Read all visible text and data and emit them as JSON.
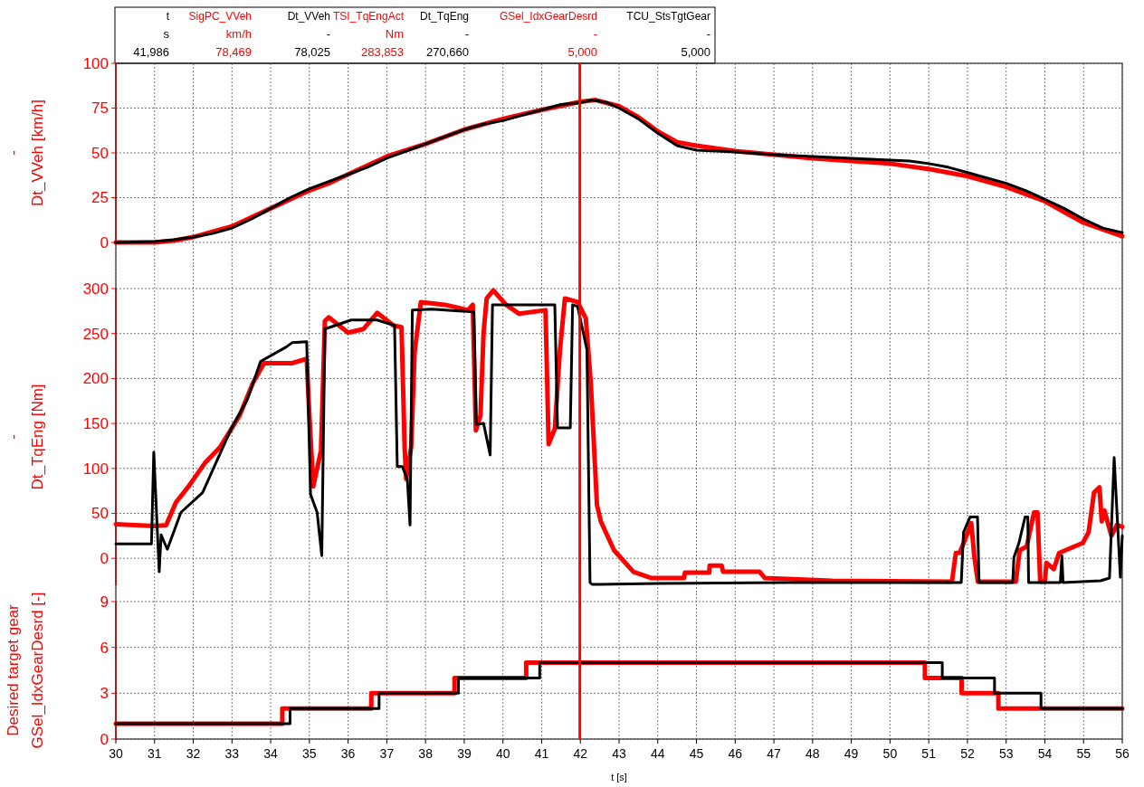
{
  "chart_data": [
    {
      "type": "line",
      "ylabel": "-\nDt_VVeh [km/h]",
      "xlim": [
        30,
        56
      ],
      "xticks": [
        30,
        31,
        32,
        33,
        34,
        35,
        36,
        37,
        38,
        39,
        40,
        41,
        42,
        43,
        44,
        45,
        46,
        47,
        48,
        49,
        50,
        51,
        52,
        53,
        54,
        55,
        56
      ],
      "ylim": [
        0,
        100
      ],
      "yticks": [
        0,
        25,
        50,
        75,
        100
      ],
      "grid": true,
      "legend": "top",
      "tick_labels": "y",
      "annotations": [
        "t",
        "s",
        "41,986",
        "km/h",
        "78,469",
        "-",
        "78,025"
      ],
      "ref_lines": [
        {
          "axis": "x",
          "value": 41.986,
          "color": "#ff0000"
        }
      ],
      "series": [
        {
          "name": "SigPC_VVeh",
          "color": "#ff0000",
          "x": [
            30,
            31,
            31.5,
            32,
            33,
            34,
            35,
            35.5,
            36,
            37,
            38,
            39,
            40,
            41,
            42,
            42.4,
            43,
            43.5,
            44,
            44.5,
            45,
            46,
            47,
            48,
            49,
            50,
            51,
            52,
            53,
            54,
            55,
            56
          ],
          "values": [
            0,
            0,
            1,
            3,
            9,
            19,
            29,
            33,
            38,
            48,
            55,
            63,
            69,
            74,
            78.5,
            79.5,
            76,
            70,
            62,
            56,
            54,
            51,
            49,
            47,
            45.5,
            44,
            41,
            37,
            31,
            23,
            11,
            3.5
          ]
        },
        {
          "name": "Dt_VVeh",
          "color": "#000000",
          "x": [
            30,
            31,
            31.5,
            32,
            32.5,
            33,
            33.5,
            34,
            34.5,
            35,
            35.5,
            36,
            36.5,
            37,
            37.5,
            38,
            38.5,
            39,
            39.5,
            40,
            40.5,
            41,
            41.5,
            42,
            42.3,
            42.7,
            43,
            43.5,
            44,
            44.5,
            45,
            46,
            47,
            48,
            49,
            50,
            50.5,
            51,
            51.5,
            52,
            52.5,
            53,
            53.5,
            54,
            54.5,
            55,
            55.5,
            56
          ],
          "values": [
            0,
            0.5,
            1.5,
            3,
            5,
            8,
            13,
            19,
            25,
            30,
            34,
            38,
            42,
            47,
            51,
            55,
            59,
            63,
            66,
            68,
            71,
            74,
            77,
            78,
            79.5,
            78,
            75,
            69,
            61,
            54,
            51.5,
            50.5,
            49,
            48,
            47,
            46,
            45.5,
            44,
            42,
            39,
            36,
            33,
            29,
            24,
            19,
            13,
            8,
            5.5
          ]
        }
      ]
    },
    {
      "type": "line",
      "ylabel": "-\nDt_TqEng [Nm]",
      "xlim": [
        30,
        56
      ],
      "xticks": [
        30,
        31,
        32,
        33,
        34,
        35,
        36,
        37,
        38,
        39,
        40,
        41,
        42,
        43,
        44,
        45,
        46,
        47,
        48,
        49,
        50,
        51,
        52,
        53,
        54,
        55,
        56
      ],
      "ylim": [
        -30,
        300
      ],
      "yticks": [
        0,
        50,
        100,
        150,
        200,
        250,
        300
      ],
      "grid": true,
      "legend": "top",
      "tick_labels": "y",
      "annotations": [
        "Nm",
        "283,853",
        "-",
        "270,660"
      ],
      "ref_lines": [
        {
          "axis": "x",
          "value": 41.986,
          "color": "#ff0000"
        }
      ],
      "series": [
        {
          "name": "TSI_TqEngAct",
          "color": "#ff0000",
          "x": [
            30,
            31,
            31.3,
            31.55,
            31.88,
            32.3,
            32.7,
            33.2,
            33.54,
            33.83,
            34.55,
            34.93,
            35.0,
            35.1,
            35.3,
            35.4,
            35.5,
            36.0,
            36.4,
            36.75,
            37.17,
            37.38,
            37.46,
            37.5,
            37.63,
            37.72,
            37.88,
            38.5,
            39.1,
            39.22,
            39.3,
            39.42,
            39.5,
            39.58,
            39.75,
            40.08,
            40.42,
            41.1,
            41.18,
            41.34,
            41.47,
            41.6,
            41.93,
            42.14,
            42.27,
            42.43,
            42.53,
            42.87,
            43.37,
            43.84,
            44.68,
            44.7,
            45.33,
            45.34,
            45.65,
            45.69,
            46.63,
            46.77,
            48.5,
            51.6,
            51.7,
            51.8,
            52.1,
            52.18,
            52.27,
            53.25,
            53.35,
            53.53,
            53.72,
            53.81,
            53.88,
            54.0,
            54.04,
            54.23,
            54.37,
            54.7,
            54.98,
            55.13,
            55.27,
            55.41,
            55.47,
            55.54,
            55.72,
            55.86,
            56
          ],
          "values": [
            38,
            36,
            37,
            62,
            80,
            106,
            124,
            159,
            195,
            217,
            217,
            222,
            159,
            80,
            120,
            264,
            268,
            251,
            255,
            273,
            259,
            257,
            124,
            88,
            124,
            230,
            285,
            282,
            276,
            282,
            142,
            159,
            251,
            289,
            298,
            282,
            272,
            276,
            127,
            144,
            230,
            289,
            285,
            267,
            195,
            59,
            41,
            9,
            -15,
            -22,
            -22,
            -16,
            -16,
            -8,
            -8,
            -15,
            -15,
            -22,
            -25,
            -26,
            6,
            6,
            39,
            1,
            -26,
            -26,
            9,
            13,
            51,
            51,
            -26,
            -26,
            -5,
            -12,
            6,
            12,
            17,
            29,
            73,
            79,
            41,
            53,
            25,
            37,
            35
          ]
        },
        {
          "name": "Dt_TqEng",
          "color": "#000000",
          "x": [
            30,
            30.92,
            30.98,
            31.12,
            31.17,
            31.33,
            31.68,
            32.24,
            32.99,
            33.4,
            33.74,
            34.4,
            34.56,
            34.93,
            35.03,
            35.2,
            35.32,
            35.4,
            36.08,
            36.75,
            37.2,
            37.27,
            37.4,
            37.53,
            37.6,
            37.66,
            38.16,
            39.25,
            39.31,
            39.5,
            39.67,
            39.73,
            41.34,
            41.41,
            41.74,
            41.8,
            41.93,
            42.17,
            42.25,
            42.3,
            42.5,
            44.03,
            47.3,
            51.84,
            51.9,
            52.07,
            52.26,
            52.3,
            53.17,
            53.2,
            53.33,
            53.49,
            53.56,
            53.58,
            54.4,
            54.44,
            54.47,
            55.44,
            55.67,
            55.79,
            55.95,
            56
          ],
          "values": [
            16,
            16,
            118,
            -15,
            26,
            10,
            51,
            73,
            145,
            177,
            219,
            235,
            240,
            241,
            71,
            51,
            3,
            255,
            265,
            265,
            259,
            102,
            102,
            88,
            37,
            276,
            277,
            274,
            149,
            150,
            115,
            282,
            282,
            145,
            145,
            282,
            280,
            232,
            -27,
            -29,
            -29,
            -28,
            -27,
            -27,
            29,
            46,
            46,
            -27,
            -27,
            1,
            17,
            46,
            46,
            -27,
            -27,
            3,
            -27,
            -25,
            -22,
            112,
            -21,
            25
          ]
        }
      ]
    },
    {
      "type": "step",
      "ylabel": "Desired target gear\nGSel_IdxGearDesrd [-]",
      "xlabel": "t [s]",
      "xlim": [
        30,
        56
      ],
      "xticks": [
        30,
        31,
        32,
        33,
        34,
        35,
        36,
        37,
        38,
        39,
        40,
        41,
        42,
        43,
        44,
        45,
        46,
        47,
        48,
        49,
        50,
        51,
        52,
        53,
        54,
        55,
        56
      ],
      "ylim": [
        0,
        9
      ],
      "yticks": [
        0,
        3,
        6,
        9
      ],
      "grid": true,
      "legend": "top",
      "annotations": [
        "-",
        "5,000",
        "-",
        "5,000"
      ],
      "ref_lines": [
        {
          "axis": "x",
          "value": 41.986,
          "color": "#ff0000"
        }
      ],
      "series": [
        {
          "name": "GSel_IdxGearDesrd",
          "color": "#ff0000",
          "x": [
            30,
            34.3,
            36.6,
            38.75,
            40.6,
            50.9,
            51.85,
            52.8,
            56
          ],
          "values": [
            1,
            2,
            3,
            4,
            5,
            4,
            3,
            2,
            2
          ]
        },
        {
          "name": "TCU_StsTgtGear",
          "color": "#000000",
          "x": [
            30,
            34.5,
            36.8,
            38.85,
            40.95,
            51.35,
            52.7,
            53.9,
            56
          ],
          "values": [
            1,
            2,
            3,
            4,
            5,
            4,
            3,
            2,
            2
          ]
        }
      ]
    }
  ]
}
